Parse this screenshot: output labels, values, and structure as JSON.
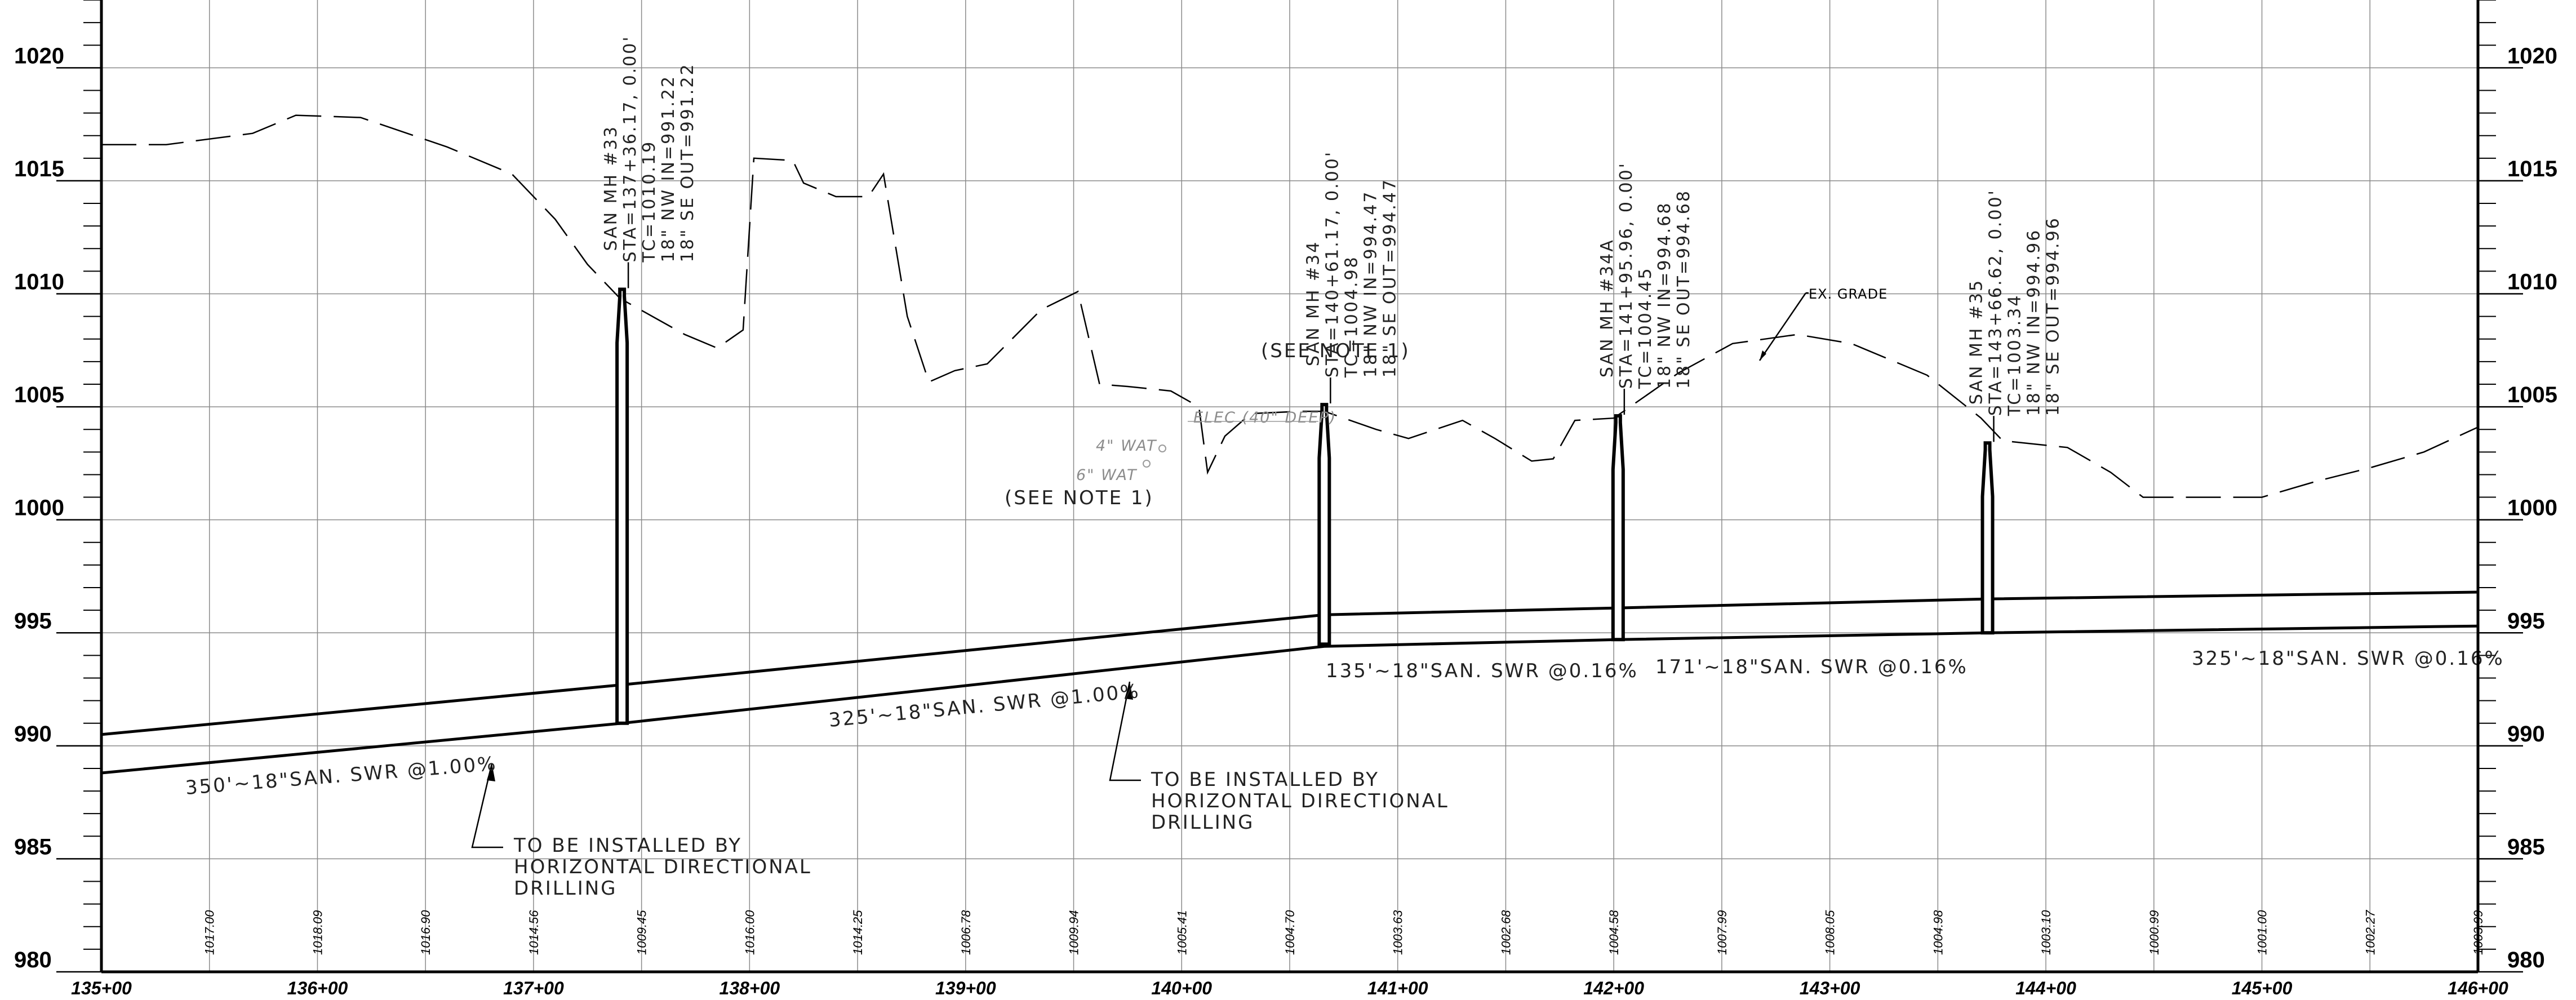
{
  "chart_data": {
    "type": "line",
    "y_ticks": [
      "1020",
      "1015",
      "1010",
      "1005",
      "1000",
      "995",
      "990",
      "985",
      "980"
    ],
    "x_ticks": [
      "135+00",
      "136+00",
      "137+00",
      "138+00",
      "139+00",
      "140+00",
      "141+00",
      "142+00",
      "143+00",
      "144+00",
      "145+00",
      "146+00"
    ],
    "ylim": [
      980,
      1023
    ],
    "xlim": [
      135,
      146
    ],
    "grid": true,
    "ground_elevations": [
      {
        "sta": 135.5,
        "elev": "1017.00"
      },
      {
        "sta": 136.0,
        "elev": "1018.09"
      },
      {
        "sta": 136.5,
        "elev": "1016.90"
      },
      {
        "sta": 137.0,
        "elev": "1014.56"
      },
      {
        "sta": 137.5,
        "elev": "1009.45"
      },
      {
        "sta": 138.0,
        "elev": "1016.00"
      },
      {
        "sta": 138.5,
        "elev": "1014.25"
      },
      {
        "sta": 139.0,
        "elev": "1006.78"
      },
      {
        "sta": 139.5,
        "elev": "1009.94"
      },
      {
        "sta": 140.0,
        "elev": "1005.41"
      },
      {
        "sta": 140.5,
        "elev": "1004.70"
      },
      {
        "sta": 141.0,
        "elev": "1003.63"
      },
      {
        "sta": 141.5,
        "elev": "1002.68"
      },
      {
        "sta": 142.0,
        "elev": "1004.58"
      },
      {
        "sta": 142.5,
        "elev": "1007.99"
      },
      {
        "sta": 143.0,
        "elev": "1008.05"
      },
      {
        "sta": 143.5,
        "elev": "1004.98"
      },
      {
        "sta": 144.0,
        "elev": "1003.10"
      },
      {
        "sta": 144.5,
        "elev": "1000.99"
      },
      {
        "sta": 145.0,
        "elev": "1001.00"
      },
      {
        "sta": 145.5,
        "elev": "1002.27"
      },
      {
        "sta": 146.0,
        "elev": "1003.99"
      }
    ],
    "existing_grade": [
      [
        135.0,
        1016.6
      ],
      [
        135.3,
        1016.6
      ],
      [
        135.7,
        1017.1
      ],
      [
        135.9,
        1017.9
      ],
      [
        136.2,
        1017.8
      ],
      [
        136.6,
        1016.5
      ],
      [
        136.9,
        1015.3
      ],
      [
        137.1,
        1013.3
      ],
      [
        137.25,
        1011.3
      ],
      [
        137.4,
        1009.8
      ],
      [
        137.55,
        1009.0
      ],
      [
        137.7,
        1008.2
      ],
      [
        137.85,
        1007.6
      ],
      [
        137.97,
        1008.4
      ],
      [
        138.02,
        1016.0
      ],
      [
        138.2,
        1015.9
      ],
      [
        138.25,
        1014.9
      ],
      [
        138.4,
        1014.3
      ],
      [
        138.55,
        1014.3
      ],
      [
        138.62,
        1015.3
      ],
      [
        138.73,
        1009.0
      ],
      [
        138.83,
        1006.1
      ],
      [
        138.95,
        1006.6
      ],
      [
        139.1,
        1006.9
      ],
      [
        139.35,
        1009.3
      ],
      [
        139.52,
        1010.1
      ],
      [
        139.62,
        1006.0
      ],
      [
        139.75,
        1005.9
      ],
      [
        139.95,
        1005.7
      ],
      [
        140.08,
        1005.0
      ],
      [
        140.12,
        1002.1
      ],
      [
        140.2,
        1003.7
      ],
      [
        140.32,
        1004.7
      ],
      [
        140.55,
        1004.8
      ],
      [
        140.66,
        1004.8
      ],
      [
        140.9,
        1004.0
      ],
      [
        141.05,
        1003.6
      ],
      [
        141.3,
        1004.4
      ],
      [
        141.45,
        1003.6
      ],
      [
        141.62,
        1002.6
      ],
      [
        141.72,
        1002.7
      ],
      [
        141.82,
        1004.4
      ],
      [
        142.0,
        1004.5
      ],
      [
        142.3,
        1006.5
      ],
      [
        142.55,
        1007.8
      ],
      [
        142.85,
        1008.2
      ],
      [
        143.1,
        1007.8
      ],
      [
        143.45,
        1006.4
      ],
      [
        143.7,
        1004.5
      ],
      [
        143.8,
        1003.5
      ],
      [
        144.1,
        1003.2
      ],
      [
        144.3,
        1002.1
      ],
      [
        144.45,
        1001.0
      ],
      [
        144.75,
        1001.0
      ],
      [
        145.0,
        1001.0
      ],
      [
        145.25,
        1001.7
      ],
      [
        145.5,
        1002.3
      ],
      [
        145.75,
        1003.0
      ],
      [
        146.0,
        1004.1
      ]
    ],
    "pipe_crown": [
      [
        135.0,
        990.5
      ],
      [
        137.41,
        992.7
      ],
      [
        140.66,
        995.8
      ],
      [
        142.02,
        996.1
      ],
      [
        143.73,
        996.5
      ],
      [
        146.0,
        996.8
      ]
    ],
    "pipe_invert": [
      [
        135.0,
        988.8
      ],
      [
        137.41,
        991.0
      ],
      [
        140.66,
        994.4
      ],
      [
        142.02,
        994.7
      ],
      [
        143.73,
        995.0
      ],
      [
        146.0,
        995.3
      ]
    ],
    "manholes": [
      {
        "sta": 137.41,
        "rim": 1010.2,
        "invert": 991.0,
        "name": "SAN MH #33",
        "station": "STA=137+36.17, 0.00'",
        "tc": "TC=1010.19",
        "nw": "18\" NW IN=991.22",
        "se": "18\" SE OUT=991.22"
      },
      {
        "sta": 140.66,
        "rim": 1005.1,
        "invert": 994.5,
        "name": "SAN MH #34",
        "station": "STA=140+61.17, 0.00'",
        "tc": "TC=1004.98",
        "nw": "18\" NW IN=994.47",
        "se": "18\" SE OUT=994.47"
      },
      {
        "sta": 142.02,
        "rim": 1004.6,
        "invert": 994.7,
        "name": "SAN MH #34A",
        "station": "STA=141+95.96, 0.00'",
        "tc": "TC=1004.45",
        "nw": "18\" NW IN=994.68",
        "se": "18\" SE OUT=994.68"
      },
      {
        "sta": 143.73,
        "rim": 1003.4,
        "invert": 995.0,
        "name": "SAN MH #35",
        "station": "STA=143+66.62, 0.00'",
        "tc": "TC=1003.34",
        "nw": "18\" NW IN=994.96",
        "se": "18\" SE OUT=994.96"
      }
    ],
    "pipe_labels": [
      "350'~18\"SAN. SWR @1.00%",
      "325'~18\"SAN. SWR @1.00%",
      "135'~18\"SAN. SWR @0.16%",
      "171'~18\"SAN. SWR @0.16%",
      "325'~18\"SAN. SWR @0.16%"
    ]
  },
  "annotations": {
    "ex_grade": "EX. GRADE",
    "see_note_upper": "(SEE NOTE 1)",
    "see_note_lower": "(SEE NOTE 1)",
    "elec": "ELEC (40\" DEEP)",
    "wat4": "4\" WAT",
    "wat6": "6\" WAT",
    "hdd_left": [
      "TO BE INSTALLED BY",
      "HORIZONTAL DIRECTIONAL",
      "DRILLING"
    ],
    "hdd_mid": [
      "TO BE INSTALLED BY",
      "HORIZONTAL DIRECTIONAL",
      "DRILLING"
    ]
  }
}
